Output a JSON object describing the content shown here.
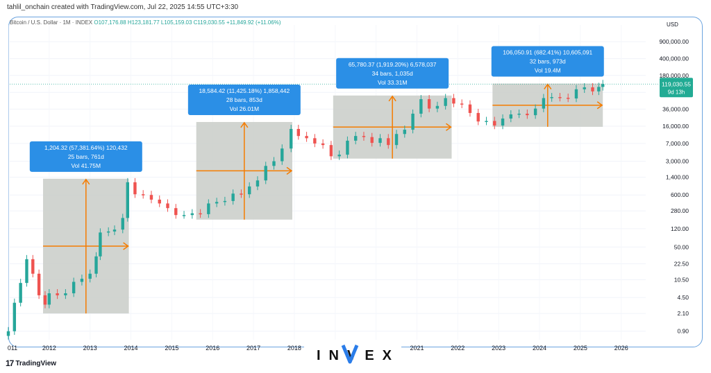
{
  "caption": "tahlil_onchain created with TradingView.com, Jul 22, 2025 14:55 UTC+3:30",
  "legend": {
    "symbol": "Bitcoin / U.S. Dollar · 1M · INDEX",
    "values": "O107,176.88  H123,181.77  L105,159.03  C119,030.55  +11,849.92 (+11.06%)"
  },
  "currency": "USD",
  "watermark": {
    "logo_text": "TradingView",
    "brand_text": "INVEX"
  },
  "colors": {
    "up": "#26a69a",
    "down": "#ef5350",
    "range_fill": "#c9cdc8",
    "arrow": "#f57c00",
    "label_bg": "#2b8fe6",
    "price_tag": "#22ab94"
  },
  "chart_data": {
    "type": "candlestick",
    "yscale": "log",
    "ylim": [
      0.6,
      2000000
    ],
    "xlim": [
      2011.0,
      2026.6
    ],
    "x_ticks": [
      "011",
      "2012",
      "2013",
      "2014",
      "2015",
      "2016",
      "2017",
      "2018",
      "2019",
      "2020",
      "2021",
      "2022",
      "2023",
      "2024",
      "2025",
      "2026"
    ],
    "y_ticks": [
      "900,000.00",
      "400,000.00",
      "180,000.00",
      "80,000.00",
      "36,000.00",
      "16,000.00",
      "7,000.00",
      "3,000.00",
      "1,400.00",
      "600.00",
      "280.00",
      "120.00",
      "50.00",
      "22.50",
      "10.50",
      "4.50",
      "2.10",
      "0.90"
    ],
    "y_tick_values": [
      900000,
      400000,
      180000,
      80000,
      36000,
      16000,
      7000,
      3000,
      1400,
      600,
      280,
      120,
      50,
      22.5,
      10.5,
      4.5,
      2.1,
      0.9
    ],
    "last_price": {
      "label": "119,030.55",
      "countdown": "9d 13h",
      "value": 119030.55
    },
    "series": [
      {
        "points": [
          [
            2011.0,
            0.9
          ],
          [
            2011.15,
            3.5
          ],
          [
            2011.3,
            9
          ],
          [
            2011.45,
            28
          ],
          [
            2011.6,
            14
          ],
          [
            2011.75,
            5
          ],
          [
            2011.9,
            3.2
          ],
          [
            2012.0,
            5.5
          ],
          [
            2012.2,
            5.0
          ],
          [
            2012.4,
            5.5
          ],
          [
            2012.6,
            9.5
          ],
          [
            2012.8,
            11
          ],
          [
            2013.0,
            14
          ],
          [
            2013.15,
            32
          ],
          [
            2013.25,
            100
          ],
          [
            2013.45,
            105
          ],
          [
            2013.6,
            115
          ],
          [
            2013.8,
            200
          ],
          [
            2013.92,
            1100
          ],
          [
            2014.1,
            620
          ],
          [
            2014.3,
            600
          ],
          [
            2014.5,
            480
          ],
          [
            2014.7,
            400
          ],
          [
            2014.9,
            320
          ],
          [
            2015.1,
            230
          ],
          [
            2015.3,
            230
          ],
          [
            2015.5,
            250
          ],
          [
            2015.7,
            240
          ],
          [
            2015.9,
            400
          ],
          [
            2016.1,
            430
          ],
          [
            2016.3,
            450
          ],
          [
            2016.5,
            640
          ],
          [
            2016.7,
            620
          ],
          [
            2016.9,
            900
          ],
          [
            2017.1,
            1200
          ],
          [
            2017.3,
            2400
          ],
          [
            2017.5,
            3000
          ],
          [
            2017.7,
            5500
          ],
          [
            2017.92,
            14000
          ],
          [
            2018.1,
            10000
          ],
          [
            2018.3,
            9000
          ],
          [
            2018.5,
            7000
          ],
          [
            2018.7,
            6500
          ],
          [
            2018.9,
            3800
          ],
          [
            2019.1,
            4100
          ],
          [
            2019.3,
            8000
          ],
          [
            2019.5,
            10000
          ],
          [
            2019.7,
            9500
          ],
          [
            2019.9,
            7200
          ],
          [
            2020.1,
            9000
          ],
          [
            2020.3,
            6500
          ],
          [
            2020.5,
            11000
          ],
          [
            2020.7,
            13500
          ],
          [
            2020.9,
            29000
          ],
          [
            2021.1,
            58000
          ],
          [
            2021.3,
            37000
          ],
          [
            2021.5,
            42000
          ],
          [
            2021.7,
            61000
          ],
          [
            2021.9,
            47000
          ],
          [
            2022.1,
            45000
          ],
          [
            2022.3,
            30000
          ],
          [
            2022.5,
            20000
          ],
          [
            2022.7,
            20500
          ],
          [
            2022.9,
            16500
          ],
          [
            2023.1,
            23000
          ],
          [
            2023.3,
            28000
          ],
          [
            2023.5,
            29000
          ],
          [
            2023.7,
            27000
          ],
          [
            2023.9,
            37000
          ],
          [
            2024.1,
            61000
          ],
          [
            2024.3,
            64000
          ],
          [
            2024.5,
            62000
          ],
          [
            2024.7,
            60000
          ],
          [
            2024.9,
            93000
          ],
          [
            2025.1,
            102000
          ],
          [
            2025.3,
            84000
          ],
          [
            2025.45,
            104000
          ],
          [
            2025.55,
            119030
          ]
        ]
      }
    ],
    "annotations": [
      {
        "lines": [
          "1,204.32 (57,381.64%) 120,432",
          "25 bars, 761d",
          "Vol 41.75M"
        ],
        "x0": 2011.85,
        "x1": 2013.95,
        "y_low": 2.1,
        "y_high": 1300
      },
      {
        "lines": [
          "18,584.42 (11,425.18%) 1,858,442",
          "28 bars, 853d",
          "Vol 26.01M"
        ],
        "x0": 2015.6,
        "x1": 2017.95,
        "y_low": 185,
        "y_high": 19500
      },
      {
        "lines": [
          "65,780.37 (1,919.20%) 6,578,037",
          "34 bars, 1,035d",
          "Vol 33.31M"
        ],
        "x0": 2018.95,
        "x1": 2021.85,
        "y_low": 3400,
        "y_high": 69000
      },
      {
        "lines": [
          "106,050.91 (682.41%) 10,605,091",
          "32 bars, 973d",
          "Vol 19.4M"
        ],
        "x0": 2022.85,
        "x1": 2025.55,
        "y_low": 15500,
        "y_high": 122000
      }
    ]
  }
}
